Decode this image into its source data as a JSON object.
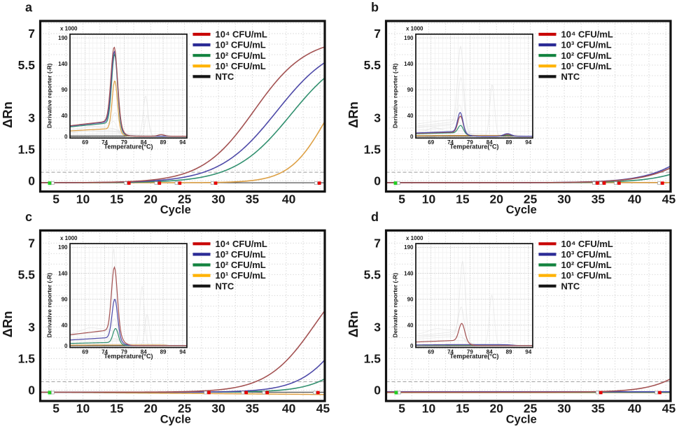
{
  "figure": {
    "description": "Four-panel qPCR figure: amplification plots (dRn vs Cycle) with melt-curve insets",
    "background": "#ffffff",
    "text_color": "#1a1a1a"
  },
  "colors": {
    "legend": {
      "cfu4": "#c80000",
      "cfu3": "#2b2b96",
      "cfu2": "#12833f",
      "cfu1": "#ffb200",
      "ntc": "#141414"
    },
    "curve": {
      "cfu4": "#a35252",
      "cfu3": "#4e4aa8",
      "cfu2": "#31906f",
      "cfu1": "#dda045",
      "ntc": "#2a2a2a"
    },
    "marker": {
      "red": "#e80000",
      "green": "#22cf22",
      "white": "#ffffff",
      "white_border": "#9a9a9a"
    },
    "grid": "#cbcbcb",
    "mesh": "#ececec",
    "mesh_major": "#c6c6c6",
    "threshold": "#9c9c9c",
    "border": "#111111",
    "gray_curve": "#e3e3e3"
  },
  "legend": {
    "items": [
      {
        "key": "cfu4",
        "label": "10⁴ CFU/mL"
      },
      {
        "key": "cfu3",
        "label": "10³ CFU/mL"
      },
      {
        "key": "cfu2",
        "label": "10² CFU/mL"
      },
      {
        "key": "cfu1",
        "label": "10¹ CFU/mL"
      },
      {
        "key": "ntc",
        "label": "NTC"
      }
    ]
  },
  "axes": {
    "amplification": {
      "xlabel": "Cycle",
      "ylabel": "ΔRn",
      "xrange": [
        3.7,
        45.7
      ],
      "yrange": [
        -0.52,
        7.6
      ],
      "yticks": [
        0,
        1.5,
        3,
        5.5,
        7
      ],
      "grid_x_step": 2.5,
      "grid_y_step": 0.5,
      "threshold": 0.4
    },
    "melt": {
      "xlabel": "Temperature(°C)",
      "ylabel": "Derivative reporter (-R)",
      "scale_note": "x 1000",
      "xrange": [
        65.1,
        95.1
      ],
      "yrange": [
        -3,
        197.2
      ],
      "xticks": [
        69,
        74,
        79,
        84,
        89,
        94
      ],
      "yticks": [
        0,
        40,
        90,
        140,
        190
      ]
    }
  },
  "chart_data": [
    {
      "panel": "a",
      "amplification": {
        "type": "line",
        "x_is": "cycle",
        "xticks": [
          5,
          10,
          15,
          20,
          25,
          30,
          35,
          40
        ],
        "series": [
          {
            "name": "NTC",
            "key": "ntc",
            "model": "flat",
            "value": -0.1
          },
          {
            "name": "10¹ CFU/mL",
            "key": "cfu1",
            "model": "logistic",
            "plateau": 6.0,
            "rate": 0.37,
            "midpoint": 45.85,
            "base": -0.1
          },
          {
            "name": "10² CFU/mL",
            "key": "cfu2",
            "model": "logistic",
            "plateau": 6.5,
            "rate": 0.24,
            "midpoint": 40.7,
            "base": -0.1
          },
          {
            "name": "10³ CFU/mL",
            "key": "cfu3",
            "model": "logistic",
            "plateau": 6.8,
            "rate": 0.235,
            "midpoint": 38.6,
            "base": -0.1
          },
          {
            "name": "10⁴ CFU/mL",
            "key": "cfu4",
            "model": "logistic",
            "plateau": 6.9,
            "rate": 0.26,
            "midpoint": 35.3,
            "base": -0.1
          }
        ]
      },
      "melt": {
        "type": "line",
        "x_is": "temperature",
        "series": [
          {
            "name": "NTC",
            "key": "ntc",
            "shoulder": 0.2,
            "cut": 90,
            "peaks": []
          },
          {
            "name": "10¹ CFU/mL",
            "key": "cfu1",
            "shoulder": 13,
            "cut": 77.8,
            "peaks": [
              [
                76.6,
                95,
                0.95
              ]
            ]
          },
          {
            "name": "10² CFU/mL",
            "key": "cfu2",
            "shoulder": 23,
            "cut": 77.9,
            "peaks": [
              [
                76.55,
                136,
                1.05
              ]
            ]
          },
          {
            "name": "10³ CFU/mL",
            "key": "cfu3",
            "shoulder": 25,
            "cut": 78.0,
            "peaks": [
              [
                76.5,
                139,
                1.12
              ]
            ]
          },
          {
            "name": "10⁴ CFU/mL",
            "key": "cfu4",
            "shoulder": 26,
            "cut": 78.1,
            "peaks": [
              [
                76.45,
                146,
                1.18
              ],
              [
                88.5,
                3,
                1.2
              ]
            ]
          }
        ],
        "background": [
          {
            "shoulder": 10,
            "cut": 78.0,
            "peaks": [
              [
                84.5,
                78,
                0.85
              ]
            ]
          },
          {
            "shoulder": 13,
            "cut": 78.5,
            "peaks": [
              [
                84.9,
                40,
                0.8
              ]
            ]
          },
          {
            "shoulder": 22,
            "cut": 78.0,
            "peaks": [
              [
                76.8,
                25,
                1.1
              ]
            ]
          },
          {
            "shoulder": 18,
            "cut": 77.5,
            "peaks": [
              [
                76.3,
                12,
                1.0
              ],
              [
                88.6,
                4,
                1.2
              ]
            ]
          },
          {
            "shoulder": 8,
            "cut": 80.0,
            "peaks": [
              [
                69.5,
                6,
                2.0
              ]
            ]
          },
          {
            "shoulder": 5,
            "cut": 82.0,
            "peaks": []
          },
          {
            "shoulder": 15,
            "cut": 77.8,
            "peaks": [
              [
                70.5,
                5,
                2.0
              ]
            ]
          },
          {
            "shoulder": 3,
            "cut": 90.0,
            "peaks": [
              [
                88.5,
                3,
                1.5
              ]
            ]
          }
        ]
      },
      "markers": [
        {
          "cycle": 5.1,
          "kind": "green"
        },
        {
          "cycle": 16.8,
          "kind": "red_pair"
        },
        {
          "cycle": 21.3,
          "kind": "red_pair"
        },
        {
          "cycle": 24.3,
          "kind": "red_pair"
        },
        {
          "cycle": 29.6,
          "kind": "red_pair"
        },
        {
          "cycle": 44.9,
          "kind": "red_pair"
        }
      ]
    },
    {
      "panel": "b",
      "amplification": {
        "type": "line",
        "x_is": "cycle",
        "xticks": [
          5,
          10,
          15,
          20,
          25,
          30,
          35,
          40,
          45
        ],
        "series": [
          {
            "name": "NTC",
            "key": "ntc",
            "model": "flat",
            "value": -0.1
          },
          {
            "name": "10¹ CFU/mL",
            "key": "cfu1",
            "model": "flat",
            "value": -0.09
          },
          {
            "name": "10² CFU/mL",
            "key": "cfu2",
            "model": "logistic",
            "plateau": 6.5,
            "rate": 0.25,
            "midpoint": 56.6,
            "base": -0.1
          },
          {
            "name": "10³ CFU/mL",
            "key": "cfu3",
            "model": "logistic",
            "plateau": 6.5,
            "rate": 0.25,
            "midpoint": 53.6,
            "base": -0.1
          },
          {
            "name": "10⁴ CFU/mL",
            "key": "cfu4",
            "model": "logistic",
            "plateau": 6.5,
            "rate": 0.25,
            "midpoint": 54.1,
            "base": -0.1
          }
        ]
      },
      "melt": {
        "type": "line",
        "x_is": "temperature",
        "series": [
          {
            "name": "NTC",
            "key": "ntc",
            "shoulder": 0.2,
            "cut": 90,
            "peaks": []
          },
          {
            "name": "10¹ CFU/mL",
            "key": "cfu1",
            "shoulder": 1.2,
            "cut": 90,
            "peaks": []
          },
          {
            "name": "10² CFU/mL",
            "key": "cfu2",
            "shoulder": 6,
            "cut": 78.0,
            "peaks": [
              [
                76.6,
                15,
                0.95
              ],
              [
                88.6,
                2,
                1.3
              ]
            ]
          },
          {
            "name": "10⁴ CFU/mL",
            "key": "cfu4",
            "shoulder": 7,
            "cut": 78.0,
            "peaks": [
              [
                76.55,
                32,
                0.95
              ],
              [
                88.6,
                3.5,
                1.3
              ]
            ]
          },
          {
            "name": "10³ CFU/mL",
            "key": "cfu3",
            "shoulder": 8,
            "cut": 78.0,
            "peaks": [
              [
                76.5,
                38,
                0.95
              ],
              [
                88.6,
                5,
                1.3
              ]
            ]
          }
        ],
        "background": [
          {
            "shoulder": 25,
            "cut": 78.0,
            "peaks": [
              [
                76.6,
                150,
                1.05
              ]
            ]
          },
          {
            "shoulder": 20,
            "cut": 78.0,
            "peaks": [
              [
                76.7,
                95,
                1.0
              ]
            ]
          },
          {
            "shoulder": 15,
            "cut": 78.2,
            "peaks": [
              [
                84.7,
                100,
                0.85
              ]
            ]
          },
          {
            "shoulder": 22,
            "cut": 77.6,
            "peaks": [
              [
                76.4,
                40,
                1.0
              ]
            ]
          },
          {
            "shoulder": 10,
            "cut": 79.0,
            "peaks": [
              [
                69.8,
                7,
                2.0
              ]
            ]
          },
          {
            "shoulder": 5,
            "cut": 83.0,
            "peaks": [
              [
                88.8,
                5,
                1.3
              ]
            ]
          },
          {
            "shoulder": 30,
            "cut": 77.4,
            "peaks": []
          },
          {
            "shoulder": 3,
            "cut": 92.0,
            "peaks": []
          }
        ]
      },
      "markers": [
        {
          "cycle": 5.1,
          "kind": "green"
        },
        {
          "cycle": 34.9,
          "kind": "red_pair"
        },
        {
          "cycle": 35.9,
          "kind": "red_pair"
        },
        {
          "cycle": 38.1,
          "kind": "red_pair"
        },
        {
          "cycle": 44.5,
          "kind": "red_pair"
        }
      ]
    },
    {
      "panel": "c",
      "amplification": {
        "type": "line",
        "x_is": "cycle",
        "xticks": [
          5,
          10,
          15,
          20,
          25,
          30,
          35,
          40,
          45
        ],
        "series": [
          {
            "name": "NTC",
            "key": "ntc",
            "model": "flat",
            "value": -0.1
          },
          {
            "name": "10¹ CFU/mL",
            "key": "cfu1",
            "model": "drift",
            "start": -0.1,
            "slope": -0.0026
          },
          {
            "name": "10² CFU/mL",
            "key": "cfu2",
            "model": "logistic",
            "plateau": 6.5,
            "rate": 0.3,
            "midpoint": 53.1,
            "base": -0.1
          },
          {
            "name": "10³ CFU/mL",
            "key": "cfu3",
            "model": "logistic",
            "plateau": 6.5,
            "rate": 0.3,
            "midpoint": 49.6,
            "base": -0.1
          },
          {
            "name": "10⁴ CFU/mL",
            "key": "cfu4",
            "model": "logistic",
            "plateau": 6.5,
            "rate": 0.282,
            "midpoint": 44.3,
            "base": -0.1
          }
        ]
      },
      "melt": {
        "type": "line",
        "x_is": "temperature",
        "series": [
          {
            "name": "NTC",
            "key": "ntc",
            "shoulder": 0.2,
            "cut": 90,
            "peaks": []
          },
          {
            "name": "10¹ CFU/mL",
            "key": "cfu1",
            "shoulder": 1.2,
            "cut": 90,
            "peaks": []
          },
          {
            "name": "10² CFU/mL",
            "key": "cfu2",
            "shoulder": 5.5,
            "cut": 78.0,
            "peaks": [
              [
                76.8,
                28,
                0.95
              ]
            ]
          },
          {
            "name": "10³ CFU/mL",
            "key": "cfu3",
            "shoulder": 14,
            "cut": 78.2,
            "peaks": [
              [
                76.6,
                76,
                1.0
              ]
            ]
          },
          {
            "name": "10⁴ CFU/mL",
            "key": "cfu4",
            "shoulder": 27,
            "cut": 78.3,
            "peaks": [
              [
                76.5,
                124,
                1.05
              ]
            ]
          }
        ],
        "background": [
          {
            "shoulder": 18,
            "cut": 78.0,
            "peaks": [
              [
                76.3,
                170,
                0.8
              ]
            ]
          },
          {
            "shoulder": 14,
            "cut": 78.4,
            "peaks": [
              [
                83.6,
                115,
                0.8
              ]
            ]
          },
          {
            "shoulder": 12,
            "cut": 78.6,
            "peaks": [
              [
                84.9,
                60,
                0.8
              ]
            ]
          },
          {
            "shoulder": 25,
            "cut": 77.6,
            "peaks": [
              [
                76.6,
                30,
                1.0
              ]
            ]
          },
          {
            "shoulder": 30,
            "cut": 77.2,
            "peaks": [
              [
                70.0,
                6,
                2.5
              ]
            ]
          },
          {
            "shoulder": 8,
            "cut": 80.0,
            "peaks": []
          },
          {
            "shoulder": 4,
            "cut": 88.0,
            "peaks": [
              [
                88.6,
                3,
                1.4
              ]
            ]
          }
        ]
      },
      "markers": [
        {
          "cycle": 5.1,
          "kind": "green"
        },
        {
          "cycle": 28.6,
          "kind": "red_pair"
        },
        {
          "cycle": 34.1,
          "kind": "red_pair"
        },
        {
          "cycle": 37.2,
          "kind": "red_pair"
        },
        {
          "cycle": 44.7,
          "kind": "red_pair"
        }
      ]
    },
    {
      "panel": "d",
      "amplification": {
        "type": "line",
        "x_is": "cycle",
        "xticks": [
          5,
          10,
          15,
          20,
          25,
          30,
          35,
          40,
          45
        ],
        "series": [
          {
            "name": "NTC",
            "key": "ntc",
            "model": "flat",
            "value": -0.1
          },
          {
            "name": "10¹ CFU/mL",
            "key": "cfu1",
            "model": "flat",
            "value": -0.12
          },
          {
            "name": "10² CFU/mL",
            "key": "cfu2",
            "model": "flat",
            "value": -0.1
          },
          {
            "name": "10³ CFU/mL",
            "key": "cfu3",
            "model": "flat",
            "value": -0.08
          },
          {
            "name": "10⁴ CFU/mL",
            "key": "cfu4",
            "model": "logistic",
            "plateau": 6.5,
            "rate": 0.3,
            "midpoint": 53.1,
            "base": -0.1
          }
        ]
      },
      "melt": {
        "type": "line",
        "x_is": "temperature",
        "series": [
          {
            "name": "NTC",
            "key": "ntc",
            "shoulder": 0.2,
            "cut": 90,
            "peaks": []
          },
          {
            "name": "10¹ CFU/mL",
            "key": "cfu1",
            "shoulder": 0.9,
            "cut": 90,
            "peaks": []
          },
          {
            "name": "10² CFU/mL",
            "key": "cfu2",
            "shoulder": 1.2,
            "cut": 90,
            "peaks": []
          },
          {
            "name": "10³ CFU/mL",
            "key": "cfu3",
            "shoulder": 1.8,
            "cut": 90,
            "peaks": []
          },
          {
            "name": "10⁴ CFU/mL",
            "key": "cfu4",
            "shoulder": 9,
            "cut": 78.5,
            "peaks": [
              [
                76.9,
                34,
                1.05
              ]
            ]
          }
        ],
        "background": [
          {
            "shoulder": 20,
            "cut": 78.2,
            "peaks": [
              [
                77.1,
                145,
                1.0
              ]
            ]
          },
          {
            "shoulder": 16,
            "cut": 78.4,
            "peaks": [
              [
                84.6,
                98,
                0.9
              ]
            ]
          },
          {
            "shoulder": 24,
            "cut": 77.6,
            "peaks": [
              [
                76.8,
                55,
                1.0
              ]
            ]
          },
          {
            "shoulder": 28,
            "cut": 77.3,
            "peaks": [
              [
                70.2,
                6,
                2.5
              ]
            ]
          },
          {
            "shoulder": 9,
            "cut": 79.5,
            "peaks": []
          },
          {
            "shoulder": 4,
            "cut": 90.0,
            "peaks": [
              [
                88.7,
                4,
                1.4
              ]
            ]
          }
        ]
      },
      "markers": [
        {
          "cycle": 5.2,
          "kind": "green"
        },
        {
          "cycle": 35.4,
          "kind": "red_pair"
        },
        {
          "cycle": 44.1,
          "kind": "red_pair"
        }
      ]
    }
  ]
}
